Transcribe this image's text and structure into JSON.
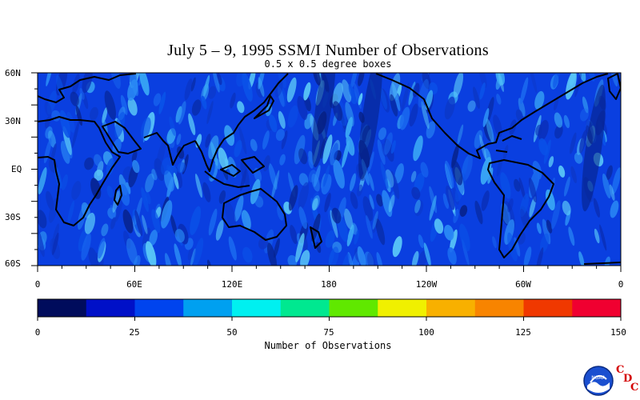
{
  "title": "July 5 – 9, 1995 SSM/I Number of Observations",
  "subtitle": "0.5 x 0.5 degree boxes",
  "lat_labels": [
    "60N",
    "30N",
    "EQ",
    "30S",
    "60S"
  ],
  "lon_labels": [
    "0",
    "60E",
    "120E",
    "180",
    "120W",
    "60W",
    "0"
  ],
  "colorbar": {
    "ticks": [
      "0",
      "25",
      "50",
      "75",
      "100",
      "125",
      "150"
    ],
    "title": "Number of Observations",
    "colors": [
      "#000c5c",
      "#0010c8",
      "#0044ee",
      "#00a0f0",
      "#00f0f0",
      "#00e890",
      "#60e800",
      "#f0f000",
      "#f8b000",
      "#f88400",
      "#f03800",
      "#f00030"
    ]
  },
  "logo": {
    "text": "NOAA",
    "letters": [
      "C",
      "D",
      "C"
    ]
  }
}
